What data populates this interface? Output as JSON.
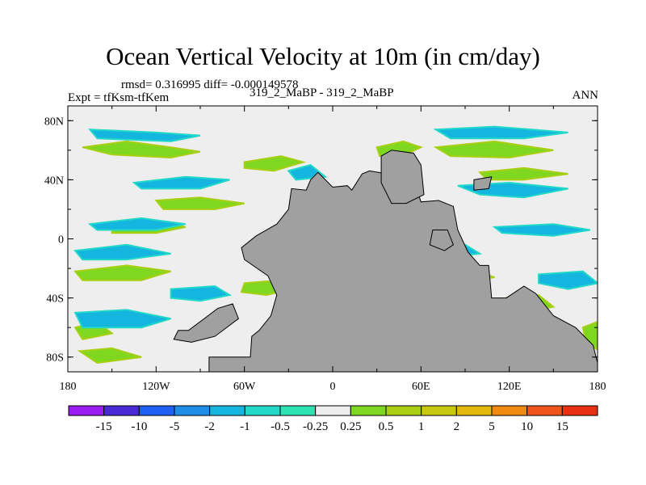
{
  "figure": {
    "title": "Ocean Vertical Velocity at 10m (in cm/day)",
    "stats_line": "rmsd= 0.316995 diff= -0.000149578",
    "experiment_label": "Expt = tfKsm-tfKem",
    "cases_label": "319_2_MaBP - 319_2_MaBP",
    "season_label": "ANN"
  },
  "chart_data": {
    "type": "heatmap",
    "title": "Ocean Vertical Velocity at 10m (in cm/day)",
    "subtitle": "rmsd= 0.316995 diff= -0.000149578",
    "xlabel": "",
    "ylabel": "",
    "xlim": [
      -180,
      180
    ],
    "ylim": [
      -90,
      90
    ],
    "x_ticks": [
      {
        "value": -180,
        "label": "180"
      },
      {
        "value": -120,
        "label": "120W"
      },
      {
        "value": -60,
        "label": "60W"
      },
      {
        "value": 0,
        "label": "0"
      },
      {
        "value": 60,
        "label": "60E"
      },
      {
        "value": 120,
        "label": "120E"
      },
      {
        "value": 180,
        "label": "180"
      }
    ],
    "y_ticks": [
      {
        "value": 80,
        "label": "80N"
      },
      {
        "value": 40,
        "label": "40N"
      },
      {
        "value": 0,
        "label": "0"
      },
      {
        "value": -40,
        "label": "40S"
      },
      {
        "value": -80,
        "label": "80S"
      }
    ],
    "colorbar": {
      "boundaries": [
        "-15",
        "-10",
        "-5",
        "-2",
        "-1",
        "-0.5",
        "-0.25",
        "0.25",
        "0.5",
        "1",
        "2",
        "5",
        "10",
        "15"
      ],
      "colors": [
        "#9a1df0",
        "#4a2ad4",
        "#1f5ff2",
        "#1f8ee8",
        "#14b6e0",
        "#22d8c8",
        "#2ce3b4",
        "#eeeeee",
        "#7fd81f",
        "#a9cf15",
        "#c8c812",
        "#e2b80e",
        "#f08a10",
        "#f0541a",
        "#e83015"
      ]
    },
    "land_color": "#a0a0a0",
    "continents": [
      {
        "name": "Eurasia-Africa",
        "outline": [
          [
            25,
            46
          ],
          [
            37,
            44
          ],
          [
            40,
            41
          ],
          [
            55,
            41
          ],
          [
            60,
            25
          ],
          [
            72,
            26
          ],
          [
            82,
            22
          ],
          [
            85,
            6
          ],
          [
            92,
            -9
          ],
          [
            100,
            -18
          ],
          [
            106,
            -18
          ],
          [
            108,
            -40
          ],
          [
            118,
            -40
          ],
          [
            130,
            -32
          ],
          [
            138,
            -37
          ],
          [
            150,
            -52
          ],
          [
            165,
            -60
          ],
          [
            177,
            -72
          ],
          [
            180,
            -84
          ],
          [
            180,
            -90
          ],
          [
            -84,
            -90
          ],
          [
            -84,
            -80
          ],
          [
            -56,
            -80
          ],
          [
            -55,
            -66
          ],
          [
            -50,
            -62
          ],
          [
            -42,
            -52
          ],
          [
            -38,
            -38
          ],
          [
            -44,
            -25
          ],
          [
            -60,
            -14
          ],
          [
            -62,
            -6
          ],
          [
            -52,
            2
          ],
          [
            -38,
            10
          ],
          [
            -30,
            20
          ],
          [
            -28,
            34
          ],
          [
            -18,
            33
          ],
          [
            -15,
            40
          ],
          [
            -10,
            45
          ],
          [
            0,
            35
          ],
          [
            10,
            36
          ],
          [
            13,
            33
          ],
          [
            20,
            44
          ]
        ]
      },
      {
        "name": "Northern-bay-landmass",
        "outline": [
          [
            33,
            56
          ],
          [
            40,
            60
          ],
          [
            55,
            58
          ],
          [
            60,
            50
          ],
          [
            62,
            30
          ],
          [
            50,
            24
          ],
          [
            40,
            24
          ],
          [
            33,
            38
          ]
        ]
      }
    ],
    "islands": [
      {
        "name": "S-America",
        "outline": [
          [
            -105,
            -62
          ],
          [
            -98,
            -62
          ],
          [
            -78,
            -47
          ],
          [
            -68,
            -44
          ],
          [
            -64,
            -54
          ],
          [
            -80,
            -66
          ],
          [
            -96,
            -70
          ],
          [
            -108,
            -68
          ]
        ]
      },
      {
        "name": "Sunda",
        "outline": [
          [
            68,
            6
          ],
          [
            78,
            6
          ],
          [
            82,
            -4
          ],
          [
            76,
            -8
          ],
          [
            66,
            -4
          ]
        ]
      },
      {
        "name": "NE-isle",
        "outline": [
          [
            96,
            40
          ],
          [
            108,
            42
          ],
          [
            106,
            34
          ],
          [
            96,
            33
          ]
        ]
      }
    ],
    "positive_regions": [
      [
        [
          -170,
          62
        ],
        [
          -140,
          66
        ],
        [
          -110,
          62
        ],
        [
          -90,
          59
        ],
        [
          -110,
          55
        ],
        [
          -150,
          57
        ]
      ],
      [
        [
          -120,
          26
        ],
        [
          -90,
          28
        ],
        [
          -60,
          24
        ],
        [
          -80,
          20
        ],
        [
          -115,
          20
        ]
      ],
      [
        [
          -60,
          52
        ],
        [
          -35,
          56
        ],
        [
          -20,
          52
        ],
        [
          -40,
          46
        ],
        [
          -60,
          48
        ]
      ],
      [
        [
          -60,
          -30
        ],
        [
          -35,
          -28
        ],
        [
          -28,
          -34
        ],
        [
          -45,
          -38
        ],
        [
          -62,
          -36
        ]
      ],
      [
        [
          -175,
          -22
        ],
        [
          -140,
          -18
        ],
        [
          -110,
          -22
        ],
        [
          -130,
          -28
        ],
        [
          -170,
          -28
        ]
      ],
      [
        [
          -175,
          -60
        ],
        [
          -160,
          -56
        ],
        [
          -150,
          -64
        ],
        [
          -170,
          -68
        ]
      ],
      [
        [
          -172,
          -76
        ],
        [
          -150,
          -74
        ],
        [
          -130,
          -80
        ],
        [
          -160,
          -84
        ]
      ],
      [
        [
          30,
          62
        ],
        [
          48,
          66
        ],
        [
          60,
          62
        ],
        [
          45,
          55
        ],
        [
          32,
          56
        ]
      ],
      [
        [
          70,
          62
        ],
        [
          110,
          66
        ],
        [
          150,
          60
        ],
        [
          120,
          55
        ],
        [
          80,
          56
        ]
      ],
      [
        [
          100,
          45
        ],
        [
          130,
          48
        ],
        [
          160,
          44
        ],
        [
          130,
          40
        ],
        [
          105,
          40
        ]
      ],
      [
        [
          65,
          -20
        ],
        [
          90,
          -20
        ],
        [
          110,
          -26
        ],
        [
          85,
          -30
        ],
        [
          65,
          -28
        ]
      ],
      [
        [
          118,
          -40
        ],
        [
          140,
          -38
        ],
        [
          150,
          -46
        ],
        [
          130,
          -50
        ],
        [
          118,
          -46
        ]
      ],
      [
        [
          170,
          -60
        ],
        [
          180,
          -56
        ],
        [
          180,
          -75
        ],
        [
          172,
          -70
        ]
      ],
      [
        [
          -40,
          0
        ],
        [
          -28,
          4
        ],
        [
          -20,
          -4
        ],
        [
          -35,
          -6
        ]
      ],
      [
        [
          -150,
          8
        ],
        [
          -120,
          12
        ],
        [
          -100,
          8
        ],
        [
          -120,
          4
        ],
        [
          -150,
          4
        ]
      ]
    ],
    "negative_regions": [
      [
        [
          -165,
          74
        ],
        [
          -120,
          72
        ],
        [
          -90,
          70
        ],
        [
          -110,
          66
        ],
        [
          -160,
          68
        ]
      ],
      [
        [
          -135,
          38
        ],
        [
          -100,
          42
        ],
        [
          -70,
          40
        ],
        [
          -90,
          34
        ],
        [
          -130,
          34
        ]
      ],
      [
        [
          -165,
          10
        ],
        [
          -130,
          14
        ],
        [
          -100,
          10
        ],
        [
          -120,
          6
        ],
        [
          -160,
          6
        ]
      ],
      [
        [
          -175,
          -8
        ],
        [
          -140,
          -4
        ],
        [
          -110,
          -10
        ],
        [
          -140,
          -14
        ],
        [
          -170,
          -14
        ]
      ],
      [
        [
          -175,
          -50
        ],
        [
          -140,
          -48
        ],
        [
          -110,
          -54
        ],
        [
          -130,
          -60
        ],
        [
          -170,
          -60
        ]
      ],
      [
        [
          -110,
          -34
        ],
        [
          -80,
          -32
        ],
        [
          -70,
          -38
        ],
        [
          -90,
          -42
        ],
        [
          -110,
          -40
        ]
      ],
      [
        [
          -30,
          46
        ],
        [
          -15,
          50
        ],
        [
          -5,
          42
        ],
        [
          -25,
          40
        ]
      ],
      [
        [
          70,
          74
        ],
        [
          110,
          76
        ],
        [
          160,
          72
        ],
        [
          130,
          68
        ],
        [
          80,
          68
        ]
      ],
      [
        [
          85,
          36
        ],
        [
          120,
          38
        ],
        [
          160,
          34
        ],
        [
          130,
          28
        ],
        [
          100,
          30
        ]
      ],
      [
        [
          110,
          8
        ],
        [
          150,
          10
        ],
        [
          175,
          6
        ],
        [
          150,
          2
        ],
        [
          115,
          4
        ]
      ],
      [
        [
          60,
          -4
        ],
        [
          90,
          -4
        ],
        [
          100,
          -10
        ],
        [
          80,
          -12
        ],
        [
          62,
          -10
        ]
      ],
      [
        [
          140,
          -24
        ],
        [
          170,
          -22
        ],
        [
          180,
          -30
        ],
        [
          160,
          -34
        ],
        [
          140,
          -30
        ]
      ],
      [
        [
          40,
          -52
        ],
        [
          80,
          -50
        ],
        [
          120,
          -56
        ],
        [
          90,
          -60
        ],
        [
          45,
          -58
        ]
      ]
    ]
  }
}
